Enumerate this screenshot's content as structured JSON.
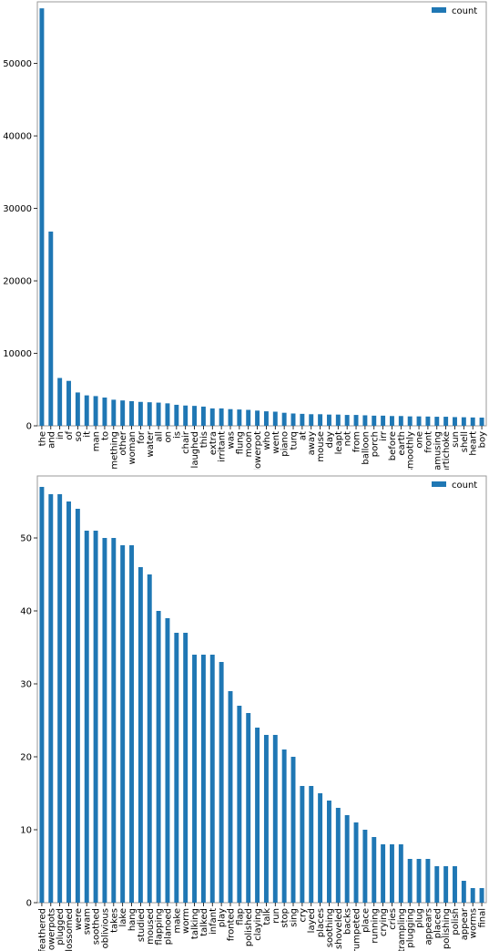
{
  "colors": {
    "bar": "#1f77b4",
    "frame": "#9a9a9a",
    "text": "#000000"
  },
  "chart_data": [
    {
      "type": "bar",
      "title": "",
      "xlabel": "",
      "ylabel": "",
      "grid": false,
      "legend": {
        "placement": "top-right",
        "entries": [
          "count"
        ]
      },
      "ylim": [
        0,
        58500
      ],
      "yticks": [
        0,
        10000,
        20000,
        30000,
        40000,
        50000
      ],
      "categories": [
        "the",
        "and",
        "in",
        "of",
        "so",
        "it",
        "man",
        "to",
        "something",
        "other",
        "woman",
        "for",
        "water",
        "all",
        "on",
        "is",
        "chair",
        "laughed",
        "this",
        "extra",
        "irritant",
        "was",
        "flung",
        "moon",
        "flowerpot",
        "who",
        "went",
        "piano",
        "turq",
        "at",
        "away",
        "mouse",
        "day",
        "leapt",
        "not",
        "from",
        "balloon",
        "porch",
        "irr",
        "before",
        "earth",
        "smoothly",
        "one",
        "front",
        "amusing",
        "artichoke",
        "sun",
        "shell",
        "heart",
        "boy"
      ],
      "series": [
        {
          "name": "count",
          "values": [
            57600,
            26800,
            6600,
            6200,
            4600,
            4200,
            4100,
            3900,
            3600,
            3500,
            3400,
            3300,
            3250,
            3200,
            3100,
            2900,
            2800,
            2750,
            2650,
            2400,
            2400,
            2300,
            2250,
            2200,
            2100,
            2000,
            1950,
            1800,
            1700,
            1650,
            1600,
            1600,
            1550,
            1550,
            1500,
            1500,
            1450,
            1400,
            1400,
            1350,
            1350,
            1300,
            1300,
            1280,
            1250,
            1250,
            1200,
            1180,
            1150,
            1130
          ]
        }
      ]
    },
    {
      "type": "bar",
      "title": "",
      "xlabel": "",
      "ylabel": "",
      "grid": false,
      "legend": {
        "placement": "top-right",
        "entries": [
          "count"
        ]
      },
      "ylim": [
        0,
        58.5
      ],
      "yticks": [
        0,
        10,
        20,
        30,
        40,
        50
      ],
      "categories": [
        "feathered",
        "flowerpots",
        "plugged",
        "blossomed",
        "were",
        "swam",
        "soothed",
        "oblivious",
        "takes",
        "lake",
        "hang",
        "studied",
        "moused",
        "flapping",
        "planoed",
        "make",
        "worm",
        "talking",
        "talked",
        "infant",
        "play",
        "fronted",
        "flap",
        "polished",
        "claying",
        "talk",
        "run",
        "stop",
        "sing",
        "cry",
        "layed",
        "places",
        "soothing",
        "shoveled",
        "backs",
        "trumpeted",
        "place",
        "running",
        "crying",
        "cries",
        "trampling",
        "plugging",
        "plug",
        "appears",
        "placed",
        "polishing",
        "polish",
        "appear",
        "worms",
        "final"
      ],
      "series": [
        {
          "name": "count",
          "values": [
            57,
            56,
            56,
            55,
            54,
            51,
            51,
            50,
            50,
            49,
            49,
            46,
            45,
            40,
            39,
            37,
            37,
            34,
            34,
            34,
            33,
            29,
            27,
            26,
            24,
            23,
            23,
            21,
            20,
            16,
            16,
            15,
            14,
            13,
            12,
            11,
            10,
            9,
            8,
            8,
            8,
            6,
            6,
            6,
            5,
            5,
            5,
            3,
            2,
            2
          ]
        }
      ]
    }
  ]
}
